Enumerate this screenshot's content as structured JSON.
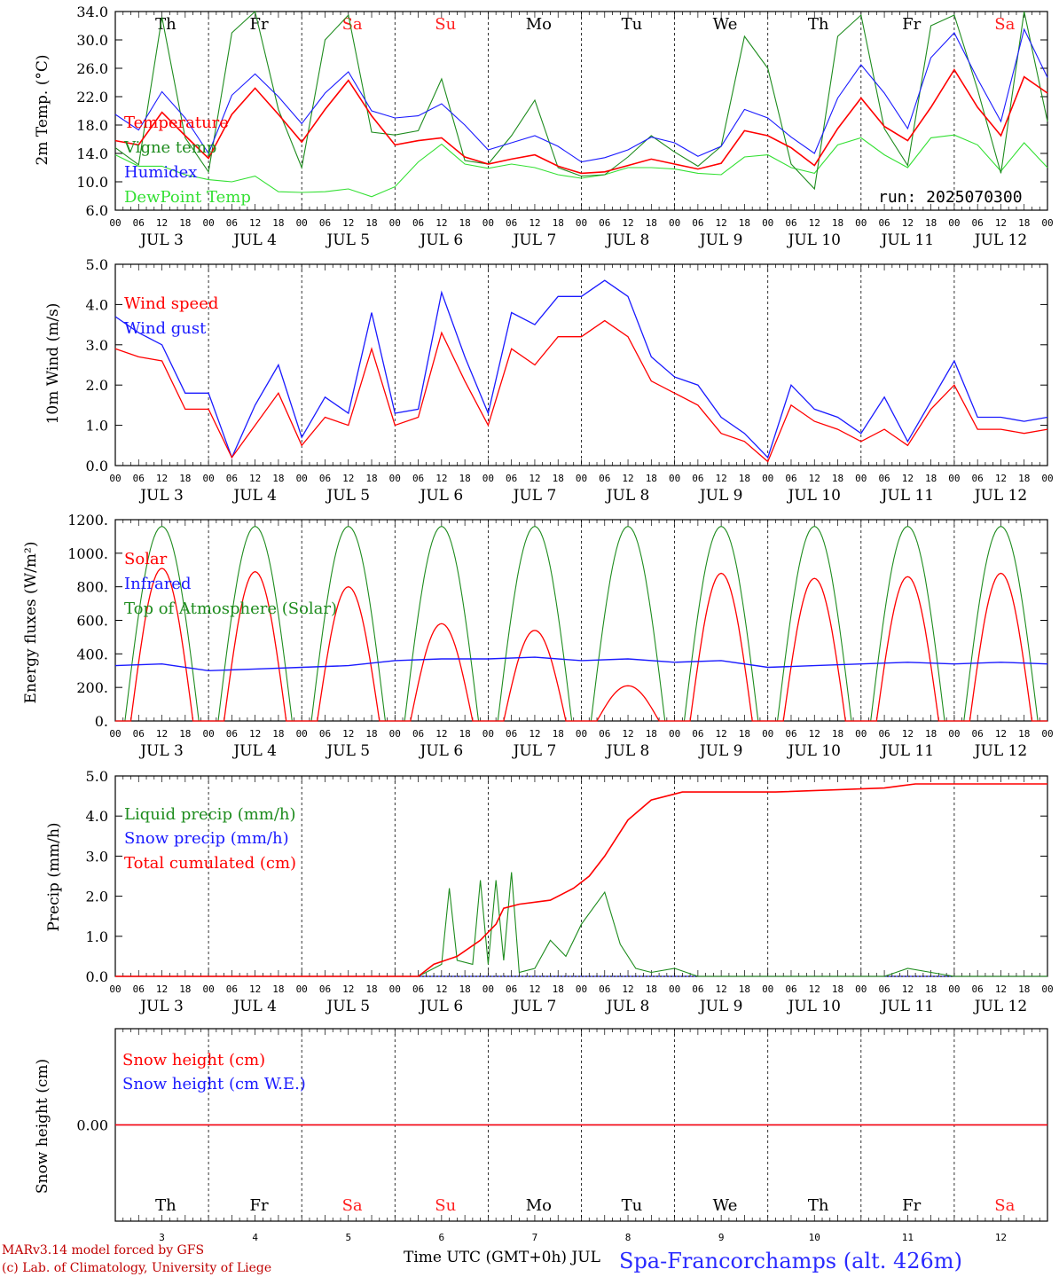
{
  "colors": {
    "temperature": "#ff0000",
    "vigne": "#1e8c1e",
    "humidex": "#1a1aff",
    "dewpoint": "#33e033",
    "weekend": "#ff2020",
    "weekday": "#000000"
  },
  "x_axis": {
    "hour_ticks": [
      "00",
      "06",
      "12",
      "18"
    ],
    "end_tick": "00",
    "dates": [
      "JUL  3",
      "JUL  4",
      "JUL  5",
      "JUL  6",
      "JUL  7",
      "JUL  8",
      "JUL  9",
      "JUL 10",
      "JUL 11",
      "JUL 12"
    ],
    "day_names": [
      "Th",
      "Fr",
      "Sa",
      "Su",
      "Mo",
      "Tu",
      "We",
      "Th",
      "Fr",
      "Sa"
    ],
    "weekend_flags": [
      false,
      false,
      true,
      true,
      false,
      false,
      false,
      false,
      false,
      true
    ],
    "day_numbers": [
      "3",
      "4",
      "5",
      "6",
      "7",
      "8",
      "9",
      "10",
      "11",
      "12"
    ]
  },
  "run_label": "run: 2025070300",
  "footer": {
    "model_line": "MARv3.14 model forced by GFS",
    "lab_line": "(c) Lab. of Climatology, University of Liege",
    "axis_title": "Time UTC (GMT+0h) JUL",
    "station": "Spa-Francorchamps (alt. 426m)"
  },
  "chart_data": [
    {
      "type": "line",
      "ylabel": "2m Temp. (°C)",
      "ylim": [
        6,
        34
      ],
      "yticks": [
        "6.0",
        "10.0",
        "14.0",
        "18.0",
        "22.0",
        "26.0",
        "30.0",
        "34.0"
      ],
      "grid": "vertical dashed at day boundaries",
      "x_hours": [
        0,
        6,
        12,
        18,
        24,
        30,
        36,
        42,
        48,
        54,
        60,
        66,
        72,
        78,
        84,
        90,
        96,
        102,
        108,
        114,
        120,
        126,
        132,
        138,
        144,
        150,
        156,
        162,
        168,
        174,
        180,
        186,
        192,
        198,
        204,
        210,
        216,
        222,
        228,
        234,
        240
      ],
      "series": [
        {
          "name": "Temperature",
          "color": "#ff0000",
          "values": [
            15.8,
            15.2,
            19.8,
            16.5,
            13.3,
            19.5,
            23.2,
            19.5,
            15.6,
            20.2,
            24.3,
            19.3,
            15.2,
            15.8,
            16.2,
            13.5,
            12.5,
            13.2,
            13.8,
            12.2,
            11.2,
            11.4,
            12.3,
            13.2,
            12.5,
            11.8,
            12.6,
            17.2,
            16.5,
            14.8,
            12.3,
            17.5,
            21.8,
            17.8,
            15.8,
            20.5,
            25.8,
            20.5,
            16.5,
            24.8,
            22.5
          ]
        },
        {
          "name": "Vigne temp",
          "color": "#1e8c1e",
          "values": [
            14.8,
            12.4,
            33.2,
            16.2,
            11.4,
            31.0,
            34.0,
            20.2,
            12.0,
            30.0,
            33.5,
            17.0,
            16.6,
            17.2,
            24.5,
            13.0,
            12.5,
            16.5,
            21.5,
            12.0,
            10.8,
            11.0,
            13.5,
            16.5,
            14.2,
            12.2,
            15.0,
            30.5,
            26.0,
            12.5,
            9.0,
            30.5,
            33.5,
            17.5,
            12.3,
            32.0,
            33.5,
            23.0,
            11.2,
            34.0,
            18.5
          ]
        },
        {
          "name": "Humidex",
          "color": "#1a1aff",
          "values": [
            19.5,
            17.3,
            22.7,
            19.0,
            14.0,
            22.2,
            25.2,
            22.0,
            18.2,
            22.5,
            25.5,
            20.0,
            19.0,
            19.3,
            21.0,
            18.0,
            14.5,
            15.5,
            16.5,
            15.0,
            12.8,
            13.4,
            14.5,
            16.3,
            15.5,
            13.6,
            15.0,
            20.2,
            19.0,
            16.3,
            14.0,
            21.8,
            26.5,
            22.5,
            17.5,
            27.5,
            31.0,
            24.5,
            18.5,
            31.5,
            24.7
          ]
        },
        {
          "name": "DewPoint Temp",
          "color": "#33e033",
          "values": [
            13.8,
            12.2,
            12.2,
            11.0,
            10.3,
            10.0,
            10.8,
            8.6,
            8.5,
            8.6,
            9.0,
            7.9,
            9.3,
            12.8,
            15.3,
            12.5,
            11.9,
            12.5,
            12.0,
            11.0,
            10.5,
            11.0,
            12.0,
            12.0,
            11.8,
            11.2,
            11.0,
            13.5,
            13.8,
            12.0,
            11.2,
            15.2,
            16.2,
            13.8,
            12.0,
            16.2,
            16.6,
            15.2,
            11.5,
            15.5,
            12.0
          ]
        }
      ]
    },
    {
      "type": "line",
      "ylabel": "10m Wind (m/s)",
      "ylim": [
        0,
        5
      ],
      "yticks": [
        "0.0",
        "1.0",
        "2.0",
        "3.0",
        "4.0",
        "5.0"
      ],
      "x_hours": [
        0,
        6,
        12,
        18,
        24,
        30,
        36,
        42,
        48,
        54,
        60,
        66,
        72,
        78,
        84,
        90,
        96,
        102,
        108,
        114,
        120,
        126,
        132,
        138,
        144,
        150,
        156,
        162,
        168,
        174,
        180,
        186,
        192,
        198,
        204,
        210,
        216,
        222,
        228,
        234,
        240
      ],
      "series": [
        {
          "name": "Wind speed",
          "color": "#ff0000",
          "values": [
            2.9,
            2.7,
            2.6,
            1.4,
            1.4,
            0.2,
            1.0,
            1.8,
            0.5,
            1.2,
            1.0,
            2.9,
            1.0,
            1.2,
            3.3,
            2.1,
            1.0,
            2.9,
            2.5,
            3.2,
            3.2,
            3.6,
            3.2,
            2.1,
            1.8,
            1.5,
            0.8,
            0.6,
            0.1,
            1.5,
            1.1,
            0.9,
            0.6,
            0.9,
            0.5,
            1.4,
            2.0,
            0.9,
            0.9,
            0.8,
            0.9
          ]
        },
        {
          "name": "Wind gust",
          "color": "#1a1aff",
          "values": [
            3.7,
            3.3,
            3.0,
            1.8,
            1.8,
            0.2,
            1.5,
            2.5,
            0.7,
            1.7,
            1.3,
            3.8,
            1.3,
            1.4,
            4.3,
            2.7,
            1.3,
            3.8,
            3.5,
            4.2,
            4.2,
            4.6,
            4.2,
            2.7,
            2.2,
            2.0,
            1.2,
            0.8,
            0.2,
            2.0,
            1.4,
            1.2,
            0.8,
            1.7,
            0.6,
            1.6,
            2.6,
            1.2,
            1.2,
            1.1,
            1.2
          ]
        }
      ]
    },
    {
      "type": "line",
      "ylabel": "Energy fluxes (W/m²)",
      "ylim": [
        0,
        1200
      ],
      "yticks": [
        "0.",
        "200.",
        "400.",
        "600.",
        "800.",
        "1000.",
        "1200."
      ],
      "day_peaks_hour": 12,
      "series": [
        {
          "name": "Solar",
          "color": "#ff0000",
          "daily_peak": [
            910,
            890,
            800,
            580,
            540,
            210,
            880,
            850,
            860,
            880
          ]
        },
        {
          "name": "Infrared",
          "color": "#1a1aff",
          "daily_level": [
            330,
            300,
            320,
            360,
            370,
            360,
            350,
            320,
            340,
            340
          ]
        },
        {
          "name": "Top of Atmosphere (Solar)",
          "color": "#1e8c1e",
          "daily_peak": [
            1160,
            1160,
            1160,
            1160,
            1160,
            1160,
            1160,
            1160,
            1160,
            1160
          ]
        }
      ]
    },
    {
      "type": "line",
      "ylabel": "Precip (mm/h)",
      "ylim": [
        0,
        5
      ],
      "yticks": [
        "0.0",
        "1.0",
        "2.0",
        "3.0",
        "4.0",
        "5.0"
      ],
      "series": [
        {
          "name": "Liquid precip (mm/h)",
          "color": "#1e8c1e",
          "points": [
            [
              0,
              0
            ],
            [
              78,
              0
            ],
            [
              84,
              0.3
            ],
            [
              86,
              2.2
            ],
            [
              88,
              0.4
            ],
            [
              92,
              0.3
            ],
            [
              94,
              2.4
            ],
            [
              96,
              0.3
            ],
            [
              98,
              2.4
            ],
            [
              100,
              0.4
            ],
            [
              102,
              2.6
            ],
            [
              104,
              0.1
            ],
            [
              108,
              0.2
            ],
            [
              112,
              0.9
            ],
            [
              116,
              0.5
            ],
            [
              120,
              1.3
            ],
            [
              126,
              2.1
            ],
            [
              130,
              0.8
            ],
            [
              134,
              0.2
            ],
            [
              138,
              0.1
            ],
            [
              144,
              0.2
            ],
            [
              150,
              0
            ],
            [
              168,
              0
            ],
            [
              198,
              0
            ],
            [
              204,
              0.2
            ],
            [
              210,
              0.1
            ],
            [
              216,
              0
            ],
            [
              240,
              0
            ]
          ]
        },
        {
          "name": "Snow precip (mm/h)",
          "color": "#1a1aff",
          "points": [
            [
              0,
              0
            ],
            [
              240,
              0
            ]
          ]
        },
        {
          "name": "Total cumulated (cm)",
          "color": "#ff0000",
          "points": [
            [
              0,
              0
            ],
            [
              78,
              0
            ],
            [
              82,
              0.3
            ],
            [
              88,
              0.5
            ],
            [
              94,
              0.9
            ],
            [
              98,
              1.3
            ],
            [
              100,
              1.7
            ],
            [
              104,
              1.8
            ],
            [
              112,
              1.9
            ],
            [
              118,
              2.2
            ],
            [
              122,
              2.5
            ],
            [
              126,
              3.0
            ],
            [
              132,
              3.9
            ],
            [
              138,
              4.4
            ],
            [
              146,
              4.6
            ],
            [
              170,
              4.6
            ],
            [
              198,
              4.7
            ],
            [
              206,
              4.8
            ],
            [
              240,
              4.8
            ]
          ]
        }
      ]
    },
    {
      "type": "line",
      "ylabel": "Snow height (cm)",
      "ytick_label": "0.00",
      "series": [
        {
          "name": "Snow height (cm)",
          "color": "#ff0000",
          "points": [
            [
              0,
              0
            ],
            [
              240,
              0
            ]
          ]
        },
        {
          "name": "Snow height (cm W.E.)",
          "color": "#1a1aff",
          "points": [
            [
              0,
              0
            ],
            [
              240,
              0
            ]
          ]
        }
      ]
    }
  ]
}
